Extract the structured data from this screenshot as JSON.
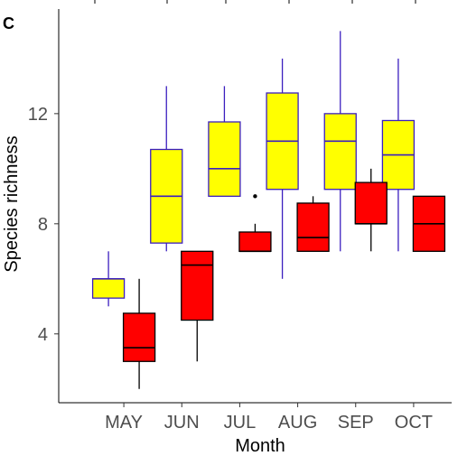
{
  "chart_data": {
    "type": "box",
    "panel_label": "c",
    "title": "",
    "xlabel": "Month",
    "ylabel": "Species richness",
    "categories": [
      "MAY",
      "JUN",
      "JUL",
      "AUG",
      "SEP",
      "OCT"
    ],
    "ylim": [
      1.5,
      15.8
    ],
    "yticks": [
      4,
      8,
      12
    ],
    "grid": false,
    "legend": "none",
    "series": [
      {
        "fill": "#ffff00",
        "line": "#3b1fbf",
        "boxes": [
          {
            "min": 5.0,
            "q1": 5.3,
            "median": 6.0,
            "q3": 6.0,
            "max": 7.0,
            "outliers": []
          },
          {
            "min": 7.0,
            "q1": 7.3,
            "median": 9.0,
            "q3": 10.7,
            "max": 13.0,
            "outliers": []
          },
          {
            "min": 9.0,
            "q1": 9.0,
            "median": 10.0,
            "q3": 11.7,
            "max": 13.0,
            "outliers": []
          },
          {
            "min": 6.0,
            "q1": 9.25,
            "median": 11.0,
            "q3": 12.75,
            "max": 14.0,
            "outliers": []
          },
          {
            "min": 7.0,
            "q1": 9.25,
            "median": 11.0,
            "q3": 12.0,
            "max": 15.0,
            "outliers": []
          },
          {
            "min": 7.0,
            "q1": 9.25,
            "median": 10.5,
            "q3": 11.75,
            "max": 14.0,
            "outliers": []
          }
        ]
      },
      {
        "fill": "#ff0000",
        "line": "#000000",
        "boxes": [
          {
            "min": 2.0,
            "q1": 3.0,
            "median": 3.5,
            "q3": 4.75,
            "max": 6.0,
            "outliers": []
          },
          {
            "min": 3.0,
            "q1": 4.5,
            "median": 6.5,
            "q3": 7.0,
            "max": 7.0,
            "outliers": []
          },
          {
            "min": 7.0,
            "q1": 7.0,
            "median": 7.0,
            "q3": 7.7,
            "max": 8.0,
            "outliers": [
              9.0
            ]
          },
          {
            "min": 7.0,
            "q1": 7.0,
            "median": 7.5,
            "q3": 8.75,
            "max": 9.0,
            "outliers": []
          },
          {
            "min": 7.0,
            "q1": 8.0,
            "median": 8.0,
            "q3": 9.5,
            "max": 10.0,
            "outliers": []
          },
          {
            "min": 7.0,
            "q1": 7.0,
            "median": 8.0,
            "q3": 9.0,
            "max": 9.0,
            "outliers": []
          }
        ]
      }
    ]
  }
}
